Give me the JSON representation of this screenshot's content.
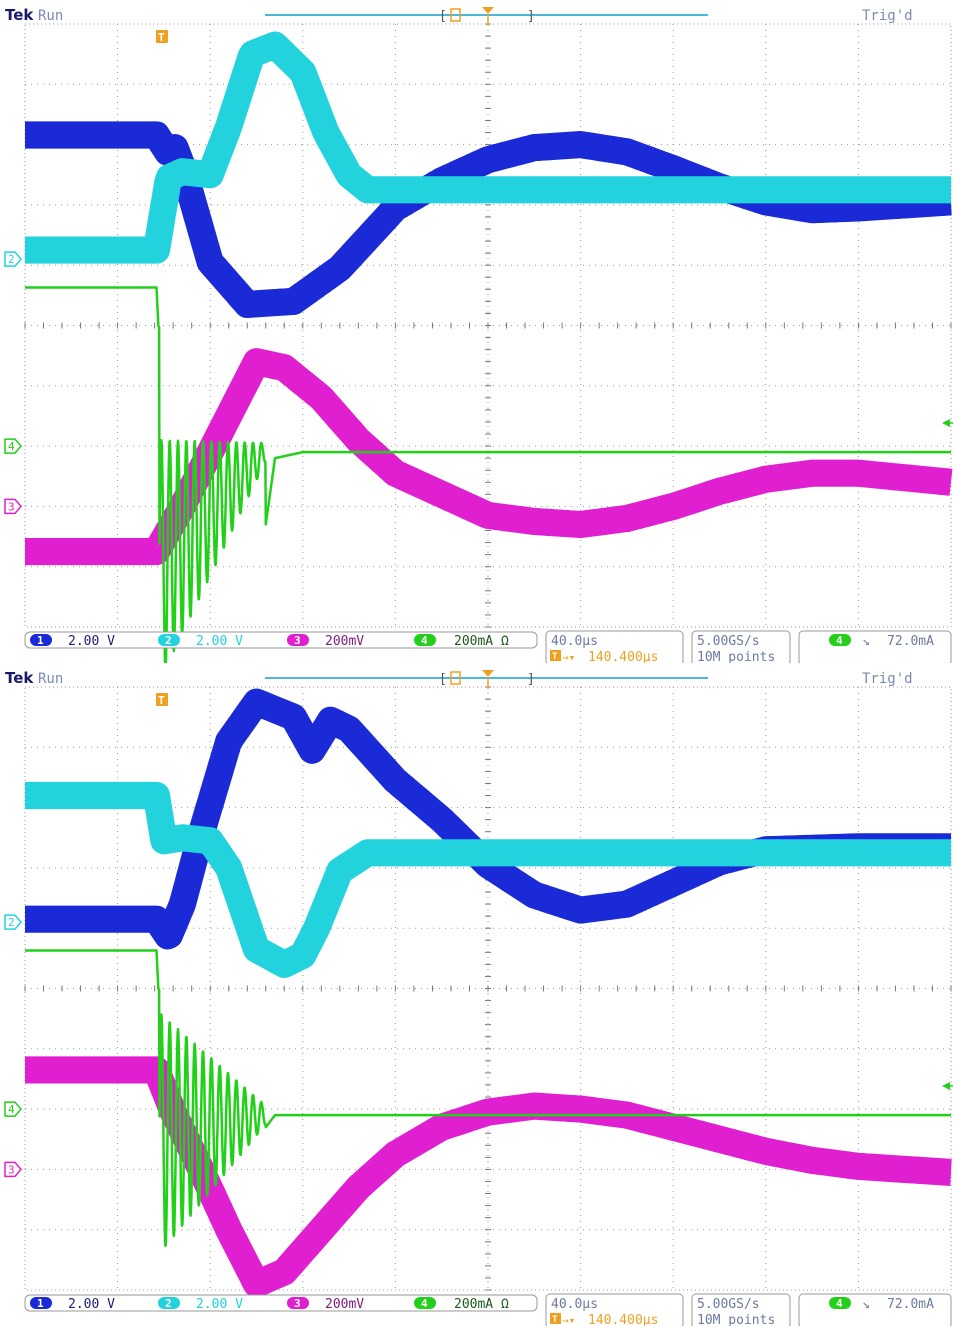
{
  "brand": "Tek",
  "state": "Run",
  "trigger_status": "Trig'd",
  "colors": {
    "ch1": "#1a2ad6",
    "ch2": "#22d3dd",
    "ch3": "#e020d0",
    "ch4": "#22d01a",
    "orange": "#f0a020",
    "grid": "#9a9a9a"
  },
  "chart_data": [
    {
      "type": "line",
      "title": "",
      "xlabel": "",
      "ylabel": "",
      "timebase": "40.0µs",
      "trigger_position": "140.400µs",
      "sample_rate": "5.00GS/s",
      "record_length": "10M points",
      "trigger_channel": "4",
      "trigger_level": "72.0mA",
      "channels": [
        {
          "number": "1",
          "scale": "2.00 V"
        },
        {
          "number": "2",
          "scale": "2.00 V"
        },
        {
          "number": "3",
          "scale": "200mV"
        },
        {
          "number": "4",
          "scale": "200mA Ω"
        }
      ],
      "series": [
        {
          "channel": "1",
          "thickness_div": 0.45,
          "x": [
            0,
            1.42,
            1.55,
            1.62,
            1.72,
            2.0,
            2.4,
            2.9,
            3.4,
            4.0,
            4.5,
            5.0,
            5.5,
            6.0,
            6.5,
            7.0,
            7.5,
            8.0,
            8.5,
            9.0,
            10.0
          ],
          "y": [
            3.16,
            3.16,
            2.85,
            2.95,
            2.55,
            1.05,
            0.35,
            0.4,
            0.95,
            1.95,
            2.4,
            2.75,
            2.95,
            3.0,
            2.88,
            2.6,
            2.3,
            2.05,
            1.92,
            1.95,
            2.05
          ]
        },
        {
          "channel": "2",
          "thickness_div": 0.45,
          "x": [
            0,
            1.42,
            1.55,
            1.7,
            2.0,
            2.2,
            2.45,
            2.7,
            3.0,
            3.25,
            3.5,
            3.7,
            3.85,
            4.5,
            10.0
          ],
          "y": [
            1.25,
            1.25,
            2.45,
            2.55,
            2.5,
            3.3,
            4.5,
            4.65,
            4.2,
            3.2,
            2.5,
            2.25,
            2.25,
            2.25,
            2.25
          ]
        },
        {
          "channel": "3",
          "thickness_div": 0.45,
          "x": [
            0,
            1.42,
            1.7,
            2.1,
            2.5,
            2.8,
            3.2,
            3.6,
            4.0,
            4.5,
            5.0,
            5.5,
            6.0,
            6.5,
            7.0,
            7.5,
            8.0,
            8.5,
            9.0,
            10.0
          ],
          "y": [
            -3.75,
            -3.75,
            -3.0,
            -1.8,
            -0.6,
            -0.7,
            -1.2,
            -1.9,
            -2.45,
            -2.8,
            -3.15,
            -3.25,
            -3.3,
            -3.2,
            -3.0,
            -2.75,
            -2.55,
            -2.45,
            -2.45,
            -2.6
          ]
        },
        {
          "channel": "4",
          "thickness_div": 0.1,
          "x": [
            0,
            1.42,
            1.44,
            2.6,
            2.7,
            3.0,
            10.0
          ],
          "y": [
            0.63,
            0.63,
            0.0,
            -3.3,
            -2.2,
            -2.1,
            -2.1
          ],
          "ringing": {
            "start": 1.45,
            "end": 2.6,
            "amp_start": 2.0,
            "amp_end": 0.15,
            "period": 0.09,
            "baseline_start": -3.9,
            "baseline_end": -2.1
          }
        }
      ]
    },
    {
      "type": "line",
      "title": "",
      "xlabel": "",
      "ylabel": "",
      "timebase": "40.0µs",
      "trigger_position": "140.400µs",
      "sample_rate": "5.00GS/s",
      "record_length": "10M points",
      "trigger_channel": "4",
      "trigger_level": "72.0mA",
      "channels": [
        {
          "number": "1",
          "scale": "2.00 V"
        },
        {
          "number": "2",
          "scale": "2.00 V"
        },
        {
          "number": "3",
          "scale": "200mV"
        },
        {
          "number": "4",
          "scale": "200mA Ω"
        }
      ],
      "series": [
        {
          "channel": "1",
          "thickness_div": 0.45,
          "x": [
            0,
            1.42,
            1.55,
            1.7,
            1.9,
            2.2,
            2.5,
            2.9,
            3.1,
            3.3,
            3.5,
            4.0,
            4.5,
            5.0,
            5.5,
            6.0,
            6.5,
            7.0,
            7.5,
            8.0,
            9.0,
            10.0
          ],
          "y": [
            1.15,
            1.15,
            0.85,
            1.4,
            2.55,
            4.1,
            4.75,
            4.5,
            3.95,
            4.45,
            4.3,
            3.45,
            2.8,
            2.05,
            1.55,
            1.3,
            1.4,
            1.75,
            2.1,
            2.3,
            2.35,
            2.35
          ]
        },
        {
          "channel": "2",
          "thickness_div": 0.45,
          "x": [
            0,
            1.42,
            1.5,
            1.7,
            2.0,
            2.2,
            2.5,
            2.8,
            3.0,
            3.15,
            3.4,
            3.7,
            4.5,
            10.0
          ],
          "y": [
            3.2,
            3.2,
            2.45,
            2.5,
            2.45,
            2.0,
            0.65,
            0.4,
            0.55,
            1.0,
            1.95,
            2.25,
            2.25,
            2.25
          ]
        },
        {
          "channel": "3",
          "thickness_div": 0.45,
          "x": [
            0,
            1.42,
            1.6,
            1.9,
            2.2,
            2.5,
            2.8,
            3.2,
            3.6,
            4.0,
            4.5,
            5.0,
            5.5,
            6.0,
            6.5,
            7.0,
            7.5,
            8.0,
            8.5,
            9.0,
            10.0
          ],
          "y": [
            -1.35,
            -1.35,
            -2.05,
            -3.0,
            -4.0,
            -4.9,
            -4.7,
            -4.0,
            -3.3,
            -2.75,
            -2.3,
            -2.05,
            -1.95,
            -2.0,
            -2.1,
            -2.3,
            -2.5,
            -2.7,
            -2.85,
            -2.95,
            -3.05
          ]
        },
        {
          "channel": "4",
          "thickness_div": 0.1,
          "x": [
            0,
            1.42,
            1.44,
            2.55,
            2.7,
            3.0,
            10.0
          ],
          "y": [
            0.63,
            0.63,
            0.0,
            -2.4,
            -2.1,
            -2.1,
            -2.1
          ],
          "ringing": {
            "start": 1.45,
            "end": 2.6,
            "amp_start": 2.0,
            "amp_end": 0.15,
            "period": 0.09,
            "baseline_start": -2.4,
            "baseline_end": -2.1
          }
        }
      ]
    }
  ]
}
